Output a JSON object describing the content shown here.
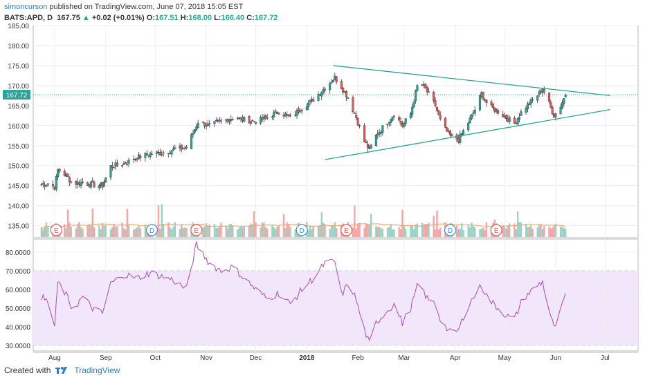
{
  "header": {
    "user": "simoncurson",
    "published_text": "published on TradingView.com, June 07, 2018 15:05 EST",
    "symbol": "BATS:APD, D",
    "price": "167.75",
    "change_arrow": "▲",
    "change": "+0.02 (+0.01%)",
    "o_label": "O:",
    "o_value": "167.51",
    "h_label": "H:",
    "h_value": "168.00",
    "l_label": "L:",
    "l_value": "166.40",
    "c_label": "C:",
    "c_value": "167.72"
  },
  "footer": {
    "created_with": "Created with",
    "brand": "TradingView"
  },
  "colors": {
    "up": "#26a69a",
    "down": "#ef5350",
    "trendline": "#2aa68a",
    "rsi_line": "#a64bb4",
    "rsi_band": "#f2e6fb",
    "volume_ma": "#f5a25d",
    "last_price_tag": "#26a69a"
  },
  "chart_data": [
    {
      "type": "candlestick",
      "symbol": "BATS:APD",
      "interval": "D",
      "ylim": [
        132,
        185
      ],
      "y_ticks": [
        "185.00",
        "180.00",
        "175.00",
        "170.00",
        "165.00",
        "160.00",
        "155.00",
        "150.00",
        "145.00",
        "140.00",
        "135.00"
      ],
      "last_price_label": "167.72",
      "last_price": 167.72,
      "x_ticks": [
        "Aug",
        "Sep",
        "Oct",
        "Nov",
        "Dec",
        "2018",
        "Feb",
        "Mar",
        "Apr",
        "May",
        "Jun",
        "Jul"
      ],
      "close_path": [
        [
          "2017-07-24",
          145.3
        ],
        [
          "2017-07-28",
          145.6
        ],
        [
          "2017-08-01",
          144.6
        ],
        [
          "2017-08-03",
          149.0
        ],
        [
          "2017-08-08",
          147.5
        ],
        [
          "2017-08-12",
          145.5
        ],
        [
          "2017-08-18",
          145.8
        ],
        [
          "2017-08-24",
          145.2
        ],
        [
          "2017-08-30",
          145.0
        ],
        [
          "2017-09-04",
          149.8
        ],
        [
          "2017-09-12",
          150.5
        ],
        [
          "2017-09-20",
          152.0
        ],
        [
          "2017-09-28",
          153.0
        ],
        [
          "2017-10-05",
          153.2
        ],
        [
          "2017-10-12",
          154.0
        ],
        [
          "2017-10-20",
          154.5
        ],
        [
          "2017-10-27",
          161.0
        ],
        [
          "2017-11-03",
          160.0
        ],
        [
          "2017-11-10",
          161.0
        ],
        [
          "2017-11-17",
          162.0
        ],
        [
          "2017-11-24",
          161.5
        ],
        [
          "2017-12-01",
          161.0
        ],
        [
          "2017-12-08",
          162.0
        ],
        [
          "2017-12-15",
          163.5
        ],
        [
          "2017-12-22",
          162.0
        ],
        [
          "2017-12-29",
          164.5
        ],
        [
          "2018-01-05",
          166.5
        ],
        [
          "2018-01-12",
          169.5
        ],
        [
          "2018-01-18",
          172.0
        ],
        [
          "2018-01-23",
          169.0
        ],
        [
          "2018-01-26",
          167.0
        ],
        [
          "2018-01-31",
          162.0
        ],
        [
          "2018-02-05",
          156.0
        ],
        [
          "2018-02-08",
          154.0
        ],
        [
          "2018-02-12",
          157.5
        ],
        [
          "2018-02-18",
          160.5
        ],
        [
          "2018-02-23",
          163.0
        ],
        [
          "2018-02-28",
          160.0
        ],
        [
          "2018-03-05",
          163.0
        ],
        [
          "2018-03-10",
          171.5
        ],
        [
          "2018-03-15",
          168.5
        ],
        [
          "2018-03-20",
          165.0
        ],
        [
          "2018-03-24",
          160.0
        ],
        [
          "2018-03-29",
          157.5
        ],
        [
          "2018-04-03",
          156.5
        ],
        [
          "2018-04-08",
          160.0
        ],
        [
          "2018-04-13",
          164.0
        ],
        [
          "2018-04-17",
          168.0
        ],
        [
          "2018-04-21",
          165.0
        ],
        [
          "2018-04-27",
          163.5
        ],
        [
          "2018-05-02",
          162.0
        ],
        [
          "2018-05-07",
          160.5
        ],
        [
          "2018-05-12",
          164.0
        ],
        [
          "2018-05-17",
          166.0
        ],
        [
          "2018-05-22",
          168.0
        ],
        [
          "2018-05-24",
          169.5
        ],
        [
          "2018-05-27",
          166.5
        ],
        [
          "2018-05-31",
          162.5
        ],
        [
          "2018-06-03",
          164.0
        ],
        [
          "2018-06-07",
          167.72
        ]
      ],
      "trendlines": [
        {
          "from": [
            "2018-01-17",
            175.0
          ],
          "to": [
            "2018-07-04",
            167.5
          ]
        },
        {
          "from": [
            "2018-01-12",
            151.5
          ],
          "to": [
            "2018-07-04",
            164.0
          ]
        }
      ],
      "earnings_markers": [
        "2017-08-02",
        "2017-10-26",
        "2018-01-25",
        "2018-04-26"
      ],
      "dividend_markers": [
        "2017-09-29",
        "2017-12-29",
        "2018-03-29"
      ],
      "marker_labels": {
        "earnings": "E",
        "dividend": "D"
      }
    },
    {
      "type": "line",
      "name": "RSI",
      "ylim": [
        27,
        87
      ],
      "y_ticks": [
        "80.0000",
        "70.0000",
        "60.0000",
        "50.0000",
        "40.0000",
        "30.0000"
      ],
      "band": [
        30,
        70
      ],
      "values": [
        [
          "2017-07-24",
          56
        ],
        [
          "2017-07-28",
          53
        ],
        [
          "2017-08-01",
          40
        ],
        [
          "2017-08-03",
          64
        ],
        [
          "2017-08-08",
          57
        ],
        [
          "2017-08-12",
          49
        ],
        [
          "2017-08-18",
          56
        ],
        [
          "2017-08-24",
          50
        ],
        [
          "2017-08-30",
          47
        ],
        [
          "2017-09-04",
          63
        ],
        [
          "2017-09-12",
          68
        ],
        [
          "2017-09-20",
          66
        ],
        [
          "2017-09-28",
          69
        ],
        [
          "2017-10-05",
          67
        ],
        [
          "2017-10-12",
          65
        ],
        [
          "2017-10-20",
          60
        ],
        [
          "2017-10-26",
          84
        ],
        [
          "2017-11-03",
          74
        ],
        [
          "2017-11-10",
          70
        ],
        [
          "2017-11-17",
          72
        ],
        [
          "2017-11-24",
          66
        ],
        [
          "2017-12-01",
          60
        ],
        [
          "2017-12-08",
          55
        ],
        [
          "2017-12-15",
          58
        ],
        [
          "2017-12-22",
          52
        ],
        [
          "2017-12-29",
          60
        ],
        [
          "2018-01-05",
          66
        ],
        [
          "2018-01-12",
          74
        ],
        [
          "2018-01-18",
          75
        ],
        [
          "2018-01-22",
          57
        ],
        [
          "2018-01-27",
          64
        ],
        [
          "2018-01-31",
          54
        ],
        [
          "2018-02-05",
          38
        ],
        [
          "2018-02-08",
          31
        ],
        [
          "2018-02-12",
          42
        ],
        [
          "2018-02-18",
          48
        ],
        [
          "2018-02-23",
          52
        ],
        [
          "2018-02-28",
          42
        ],
        [
          "2018-03-05",
          50
        ],
        [
          "2018-03-10",
          64
        ],
        [
          "2018-03-15",
          55
        ],
        [
          "2018-03-20",
          52
        ],
        [
          "2018-03-24",
          42
        ],
        [
          "2018-03-29",
          37
        ],
        [
          "2018-04-03",
          38
        ],
        [
          "2018-04-08",
          50
        ],
        [
          "2018-04-13",
          57
        ],
        [
          "2018-04-17",
          62
        ],
        [
          "2018-04-21",
          55
        ],
        [
          "2018-04-27",
          50
        ],
        [
          "2018-05-02",
          46
        ],
        [
          "2018-05-07",
          44
        ],
        [
          "2018-05-12",
          55
        ],
        [
          "2018-05-17",
          59
        ],
        [
          "2018-05-22",
          63
        ],
        [
          "2018-05-24",
          64
        ],
        [
          "2018-05-28",
          49
        ],
        [
          "2018-05-31",
          39
        ],
        [
          "2018-06-03",
          45
        ],
        [
          "2018-06-07",
          58
        ]
      ]
    }
  ]
}
